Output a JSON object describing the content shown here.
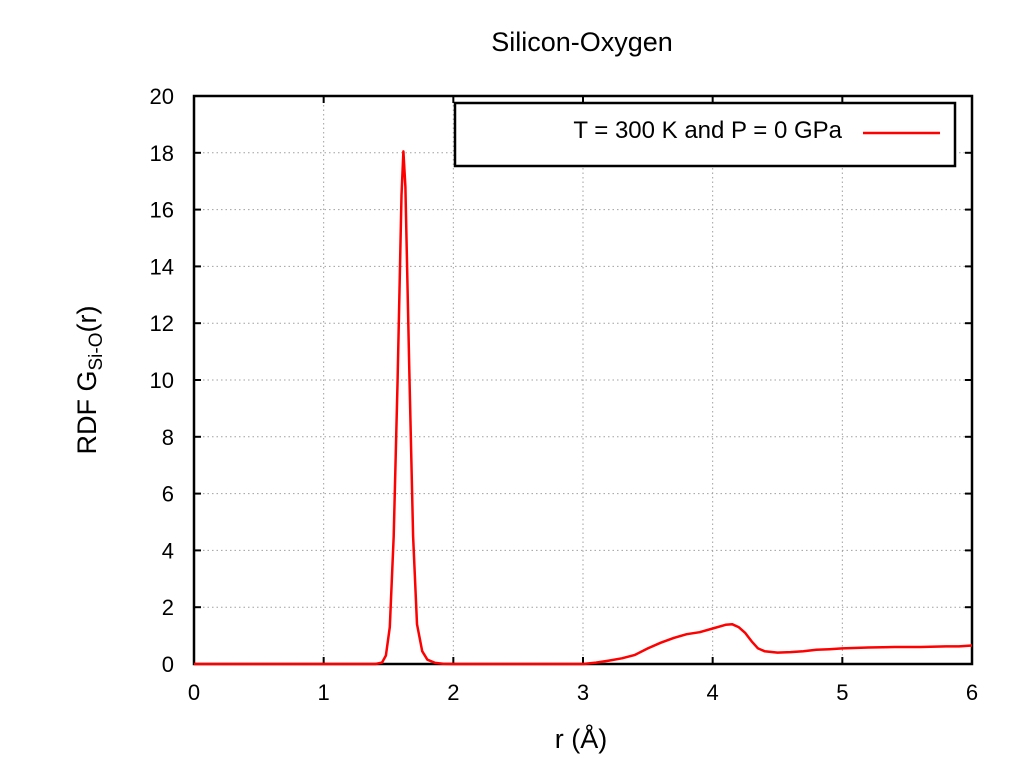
{
  "chart_data": {
    "type": "line",
    "title": "Silicon-Oxygen",
    "xlabel": "r (Å)",
    "ylabel_main": "RDF G",
    "ylabel_sub": "Si-O",
    "ylabel_suffix": "(r)",
    "xlim": [
      0,
      6
    ],
    "ylim": [
      0,
      20
    ],
    "x_ticks": [
      "0",
      "1",
      "2",
      "3",
      "4",
      "5",
      "6"
    ],
    "y_ticks": [
      "0",
      "2",
      "4",
      "6",
      "8",
      "10",
      "12",
      "14",
      "16",
      "18",
      "20"
    ],
    "grid": true,
    "legend_position": "top-right",
    "series": [
      {
        "name": "T = 300 K and P = 0 GPa",
        "color": "#ff0000",
        "points": [
          [
            0.0,
            0.0
          ],
          [
            1.4,
            0.0
          ],
          [
            1.45,
            0.05
          ],
          [
            1.48,
            0.3
          ],
          [
            1.51,
            1.3
          ],
          [
            1.54,
            4.5
          ],
          [
            1.57,
            10.0
          ],
          [
            1.6,
            16.5
          ],
          [
            1.615,
            18.05
          ],
          [
            1.63,
            16.8
          ],
          [
            1.66,
            10.5
          ],
          [
            1.69,
            4.5
          ],
          [
            1.72,
            1.4
          ],
          [
            1.76,
            0.45
          ],
          [
            1.8,
            0.15
          ],
          [
            1.86,
            0.04
          ],
          [
            1.92,
            0.01
          ],
          [
            2.0,
            0.0
          ],
          [
            3.0,
            0.0
          ],
          [
            3.1,
            0.05
          ],
          [
            3.2,
            0.12
          ],
          [
            3.3,
            0.2
          ],
          [
            3.4,
            0.32
          ],
          [
            3.5,
            0.55
          ],
          [
            3.6,
            0.75
          ],
          [
            3.7,
            0.92
          ],
          [
            3.8,
            1.05
          ],
          [
            3.9,
            1.12
          ],
          [
            4.0,
            1.25
          ],
          [
            4.1,
            1.38
          ],
          [
            4.15,
            1.4
          ],
          [
            4.2,
            1.3
          ],
          [
            4.25,
            1.1
          ],
          [
            4.3,
            0.8
          ],
          [
            4.35,
            0.55
          ],
          [
            4.4,
            0.45
          ],
          [
            4.5,
            0.4
          ],
          [
            4.6,
            0.42
          ],
          [
            4.7,
            0.45
          ],
          [
            4.8,
            0.5
          ],
          [
            4.9,
            0.52
          ],
          [
            5.0,
            0.55
          ],
          [
            5.2,
            0.58
          ],
          [
            5.4,
            0.6
          ],
          [
            5.6,
            0.6
          ],
          [
            5.8,
            0.62
          ],
          [
            5.9,
            0.62
          ],
          [
            6.0,
            0.65
          ]
        ]
      }
    ]
  }
}
